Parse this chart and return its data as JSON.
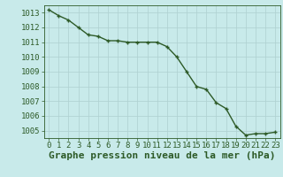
{
  "hours": [
    0,
    1,
    2,
    3,
    4,
    5,
    6,
    7,
    8,
    9,
    10,
    11,
    12,
    13,
    14,
    15,
    16,
    17,
    18,
    19,
    20,
    21,
    22,
    23
  ],
  "pressure": [
    1013.2,
    1012.8,
    1012.5,
    1012.0,
    1011.5,
    1011.4,
    1011.1,
    1011.1,
    1011.0,
    1011.0,
    1011.0,
    1011.0,
    1010.7,
    1010.0,
    1009.0,
    1008.0,
    1007.8,
    1006.9,
    1006.5,
    1005.3,
    1004.7,
    1004.8,
    1004.8,
    1004.9
  ],
  "ylim_min": 1004.5,
  "ylim_max": 1013.5,
  "yticks": [
    1005,
    1006,
    1007,
    1008,
    1009,
    1010,
    1011,
    1012,
    1013
  ],
  "line_color": "#2d5a27",
  "marker_color": "#2d5a27",
  "bg_color": "#c8eaea",
  "grid_color": "#aed0d0",
  "text_color": "#2d5a27",
  "xlabel": "Graphe pression niveau de la mer (hPa)",
  "title_fontsize": 8,
  "tick_fontsize": 6.5,
  "marker": "+",
  "linewidth": 1.0
}
